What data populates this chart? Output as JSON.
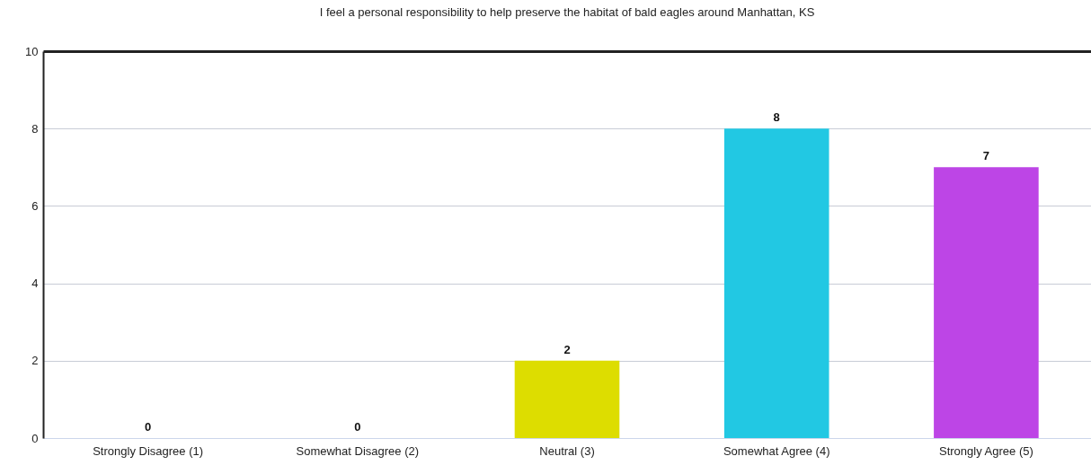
{
  "chart_data": {
    "type": "bar",
    "title": "I feel a personal responsibility to help preserve the habitat of bald eagles around Manhattan, KS",
    "categories": [
      "Strongly Disagree (1)",
      "Somewhat Disagree (2)",
      "Neutral (3)",
      "Somewhat Agree (4)",
      "Strongly Agree (5)"
    ],
    "values": [
      0,
      0,
      2,
      8,
      7
    ],
    "colors": [
      "#7cb5ec",
      "#434348",
      "#dddd00",
      "#22c8e3",
      "#bd45e6"
    ],
    "ylim": [
      0,
      10
    ],
    "yticks": [
      0,
      2,
      4,
      6,
      8,
      10
    ],
    "grid": "y",
    "data_labels": true
  }
}
